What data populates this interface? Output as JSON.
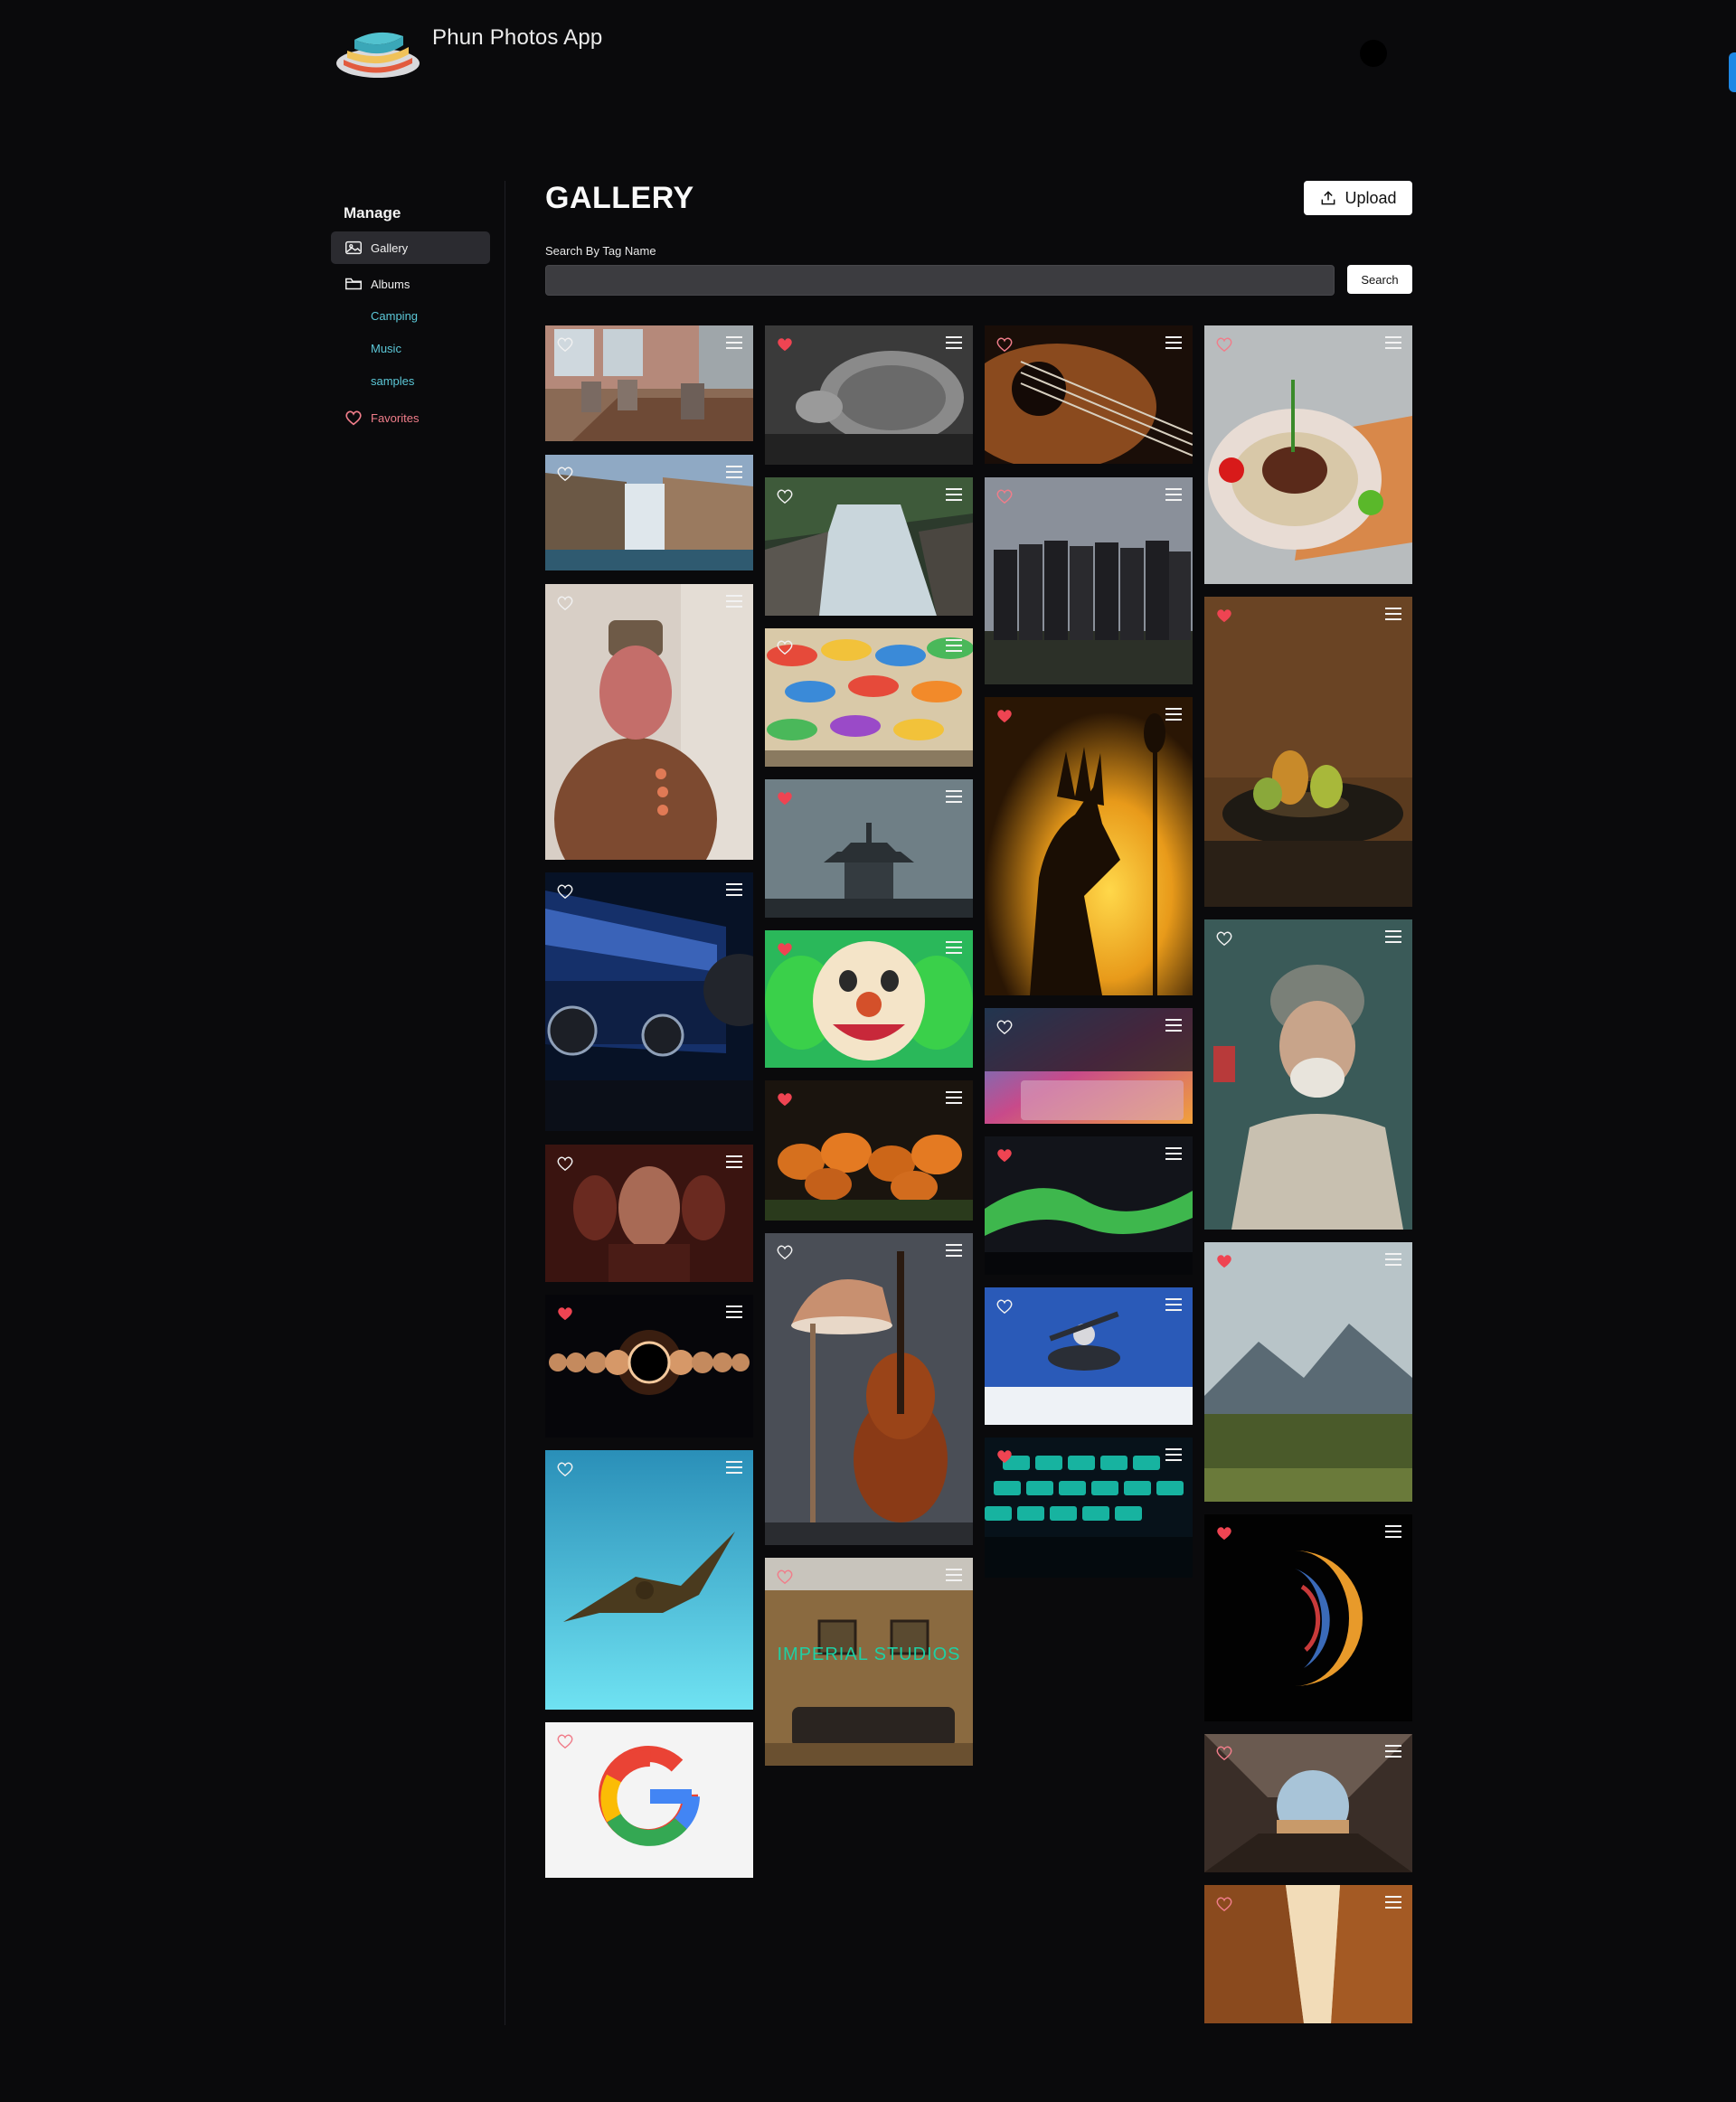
{
  "app": {
    "title": "Phun Photos App"
  },
  "sidebar": {
    "heading": "Manage",
    "items": [
      {
        "label": "Gallery",
        "icon": "image-icon",
        "active": true
      },
      {
        "label": "Albums",
        "icon": "folder-icon",
        "active": false
      }
    ],
    "albums": [
      "Camping",
      "Music",
      "samples"
    ],
    "favorites_label": "Favorites"
  },
  "main": {
    "title": "GALLERY",
    "upload_label": "Upload",
    "search_label": "Search By Tag Name",
    "search_value": "",
    "search_button": "Search"
  },
  "overlay_texts": {
    "imperial": "IMPERIAL STUDIOS"
  },
  "colors": {
    "accent": "#1e88e5",
    "favorite": "#ef4452",
    "album_link": "#5cc8d8",
    "background": "#0a0a0c"
  },
  "gallery": {
    "photos": [
      {
        "subject": "conference room",
        "favorited": false
      },
      {
        "subject": "waterfall",
        "favorited": false
      },
      {
        "subject": "masked portrait",
        "favorited": false
      },
      {
        "subject": "Chase Center",
        "favorited": false
      },
      {
        "subject": "face portrait",
        "favorited": false
      },
      {
        "subject": "solar eclipse",
        "favorited": true
      },
      {
        "subject": "eagle",
        "favorited": false
      },
      {
        "subject": "google logo",
        "favorited": false
      },
      {
        "subject": "tortoise",
        "favorited": true
      },
      {
        "subject": "river stream",
        "favorited": false
      },
      {
        "subject": "umbrellas",
        "favorited": false
      },
      {
        "subject": "pagoda fog",
        "favorited": true
      },
      {
        "subject": "clown",
        "favorited": true
      },
      {
        "subject": "pumpkins",
        "favorited": true
      },
      {
        "subject": "lamp and cello",
        "favorited": false
      },
      {
        "subject": "studio lobby",
        "favorited": false
      },
      {
        "subject": "guitar strings",
        "favorited": false
      },
      {
        "subject": "band",
        "favorited": false
      },
      {
        "subject": "sunset warrior",
        "favorited": true
      },
      {
        "subject": "rainbow keyboard",
        "favorited": false
      },
      {
        "subject": "aurora",
        "favorited": true
      },
      {
        "subject": "skydivers",
        "favorited": false
      },
      {
        "subject": "glowing keyboard",
        "favorited": true
      },
      {
        "subject": "food plate",
        "favorited": false
      },
      {
        "subject": "pears",
        "favorited": true
      },
      {
        "subject": "old man",
        "favorited": false
      },
      {
        "subject": "mountains",
        "favorited": true
      },
      {
        "subject": "planet",
        "favorited": true
      },
      {
        "subject": "tunnel view",
        "favorited": false
      },
      {
        "subject": "canyon",
        "favorited": false
      }
    ]
  }
}
